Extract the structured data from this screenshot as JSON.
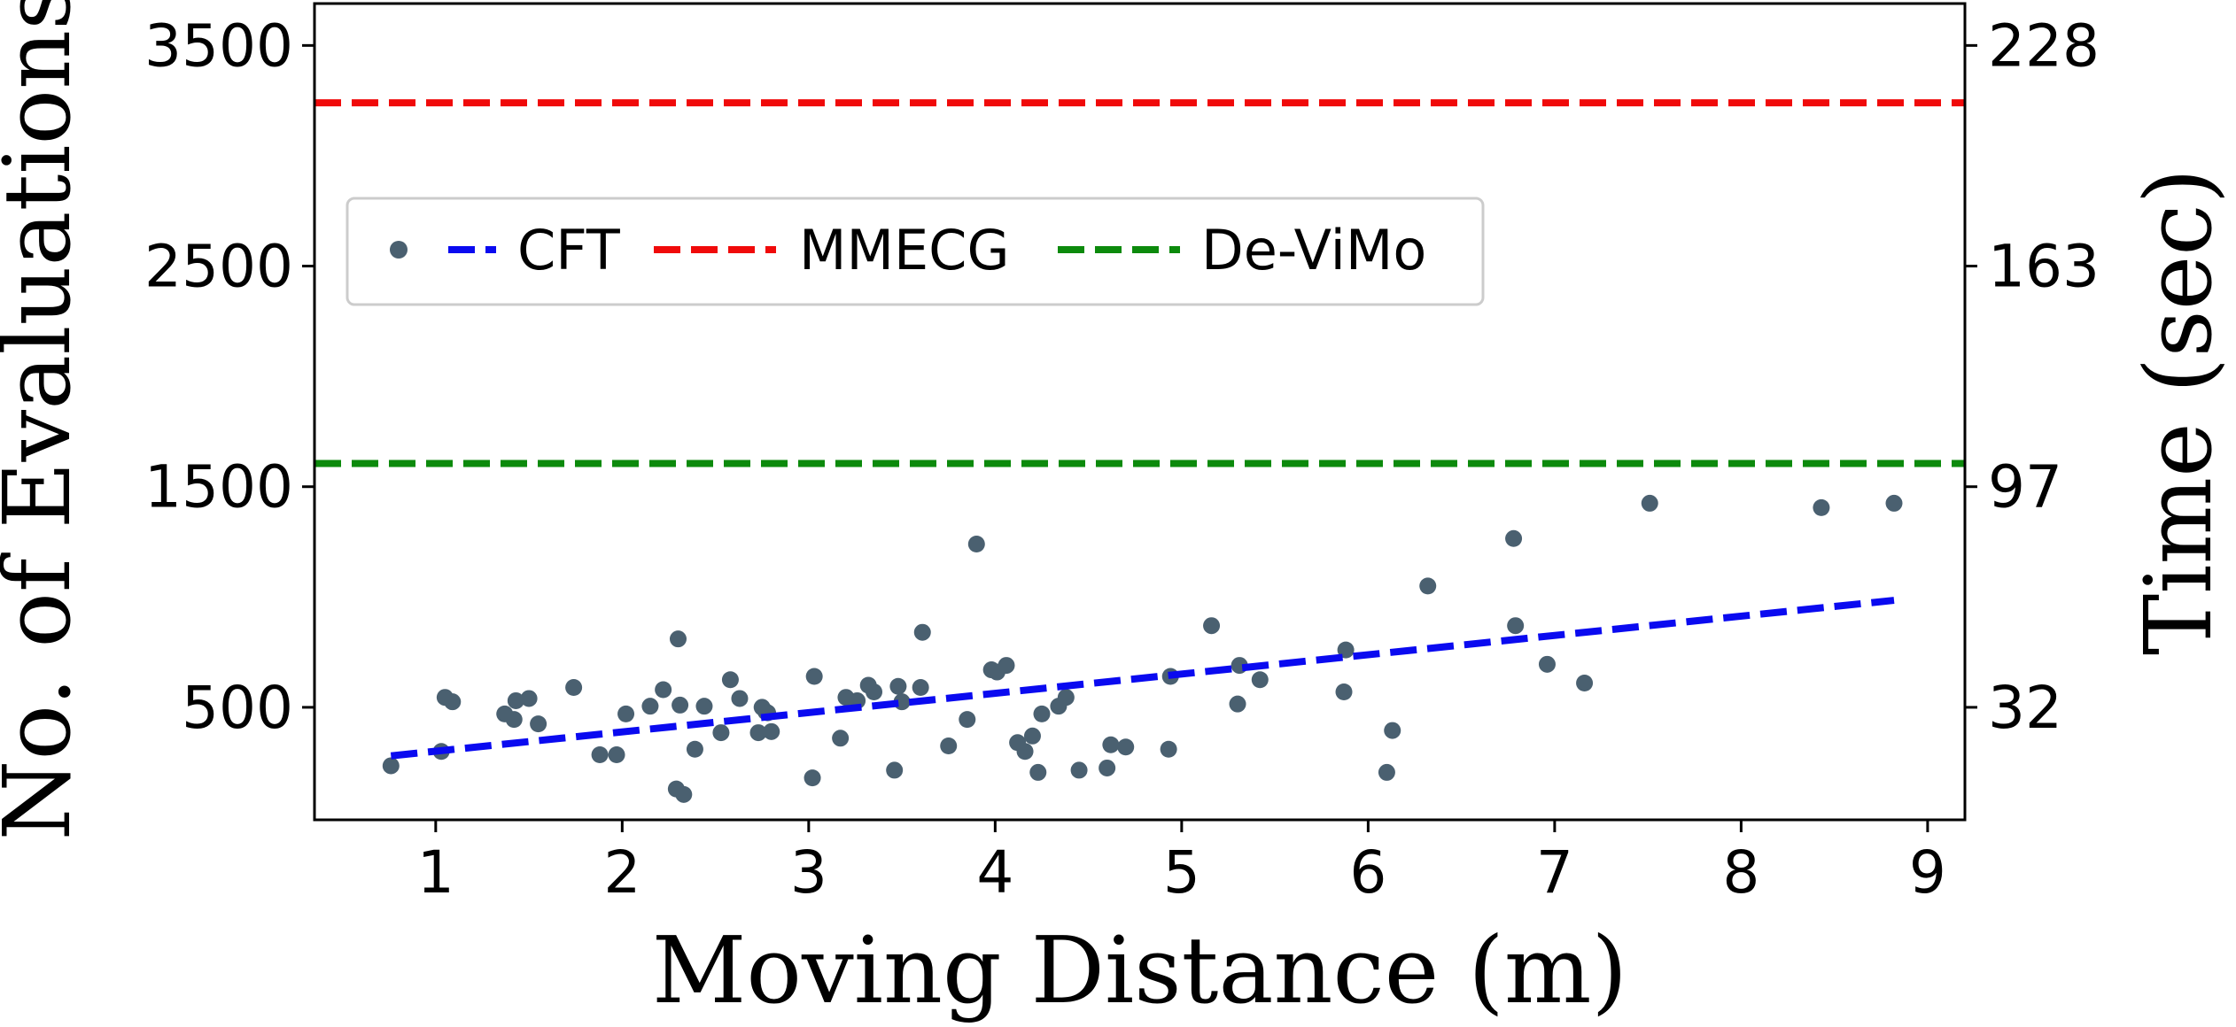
{
  "chart_data": {
    "type": "scatter",
    "xlabel": "Moving Distance (m)",
    "ylabel": "No. of Evaluations",
    "y2label": "Time (sec)",
    "xlim": [
      0.35,
      9.2
    ],
    "ylim": [
      -10,
      3690
    ],
    "xticks": [
      1,
      2,
      3,
      4,
      5,
      6,
      7,
      8,
      9
    ],
    "xtick_labels": [
      "1",
      "2",
      "3",
      "4",
      "5",
      "6",
      "7",
      "8",
      "9"
    ],
    "yticks": [
      500,
      1500,
      2500,
      3500
    ],
    "ytick_labels": [
      "500",
      "1500",
      "2500",
      "3500"
    ],
    "y2ticks": [
      500,
      1500,
      2500,
      3500
    ],
    "y2tick_labels": [
      "32",
      "97",
      "163",
      "228"
    ],
    "grid": false,
    "legend_position": "upper-left",
    "legend": [
      "CFT",
      "MMECG",
      "De-ViMo"
    ],
    "colors": {
      "points": "#4a6070",
      "cft_fit": "#0a0af0",
      "mmecg": "#f00a0a",
      "devimo": "#0c8a0c"
    },
    "series": [
      {
        "name": "CFT",
        "kind": "points",
        "x": [
          0.76,
          1.03,
          1.05,
          1.09,
          1.37,
          1.42,
          1.43,
          1.5,
          1.55,
          1.74,
          1.88,
          1.97,
          2.02,
          2.15,
          2.22,
          2.29,
          2.3,
          2.31,
          2.33,
          2.39,
          2.44,
          2.53,
          2.58,
          2.63,
          2.73,
          2.75,
          2.77,
          2.78,
          2.8,
          3.02,
          3.03,
          3.17,
          3.2,
          3.26,
          3.32,
          3.35,
          3.46,
          3.48,
          3.5,
          3.6,
          3.61,
          3.75,
          3.85,
          3.9,
          3.98,
          4.01,
          4.06,
          4.12,
          4.16,
          4.2,
          4.23,
          4.25,
          4.34,
          4.38,
          4.45,
          4.6,
          4.62,
          4.7,
          4.93,
          4.94,
          5.16,
          5.3,
          5.31,
          5.42,
          5.87,
          5.88,
          6.1,
          6.13,
          6.32,
          6.78,
          6.79,
          6.96,
          7.16,
          7.51,
          8.43,
          8.82
        ],
        "y": [
          235,
          300,
          545,
          525,
          470,
          445,
          530,
          540,
          425,
          590,
          285,
          285,
          470,
          505,
          580,
          130,
          810,
          510,
          105,
          310,
          505,
          385,
          625,
          540,
          385,
          500,
          480,
          475,
          390,
          180,
          640,
          360,
          545,
          530,
          600,
          570,
          215,
          595,
          525,
          590,
          840,
          325,
          445,
          1240,
          670,
          660,
          690,
          340,
          300,
          370,
          205,
          470,
          505,
          545,
          215,
          225,
          330,
          320,
          310,
          640,
          870,
          515,
          690,
          625,
          570,
          760,
          205,
          395,
          1050,
          1265,
          870,
          695,
          610,
          1425,
          1405,
          1425
        ]
      },
      {
        "name": "CFT",
        "kind": "fit",
        "x": [
          0.76,
          8.82
        ],
        "y": [
          280,
          985
        ]
      },
      {
        "name": "MMECG",
        "kind": "hline",
        "y": 3240
      },
      {
        "name": "De-ViMo",
        "kind": "hline",
        "y": 1605
      }
    ]
  }
}
